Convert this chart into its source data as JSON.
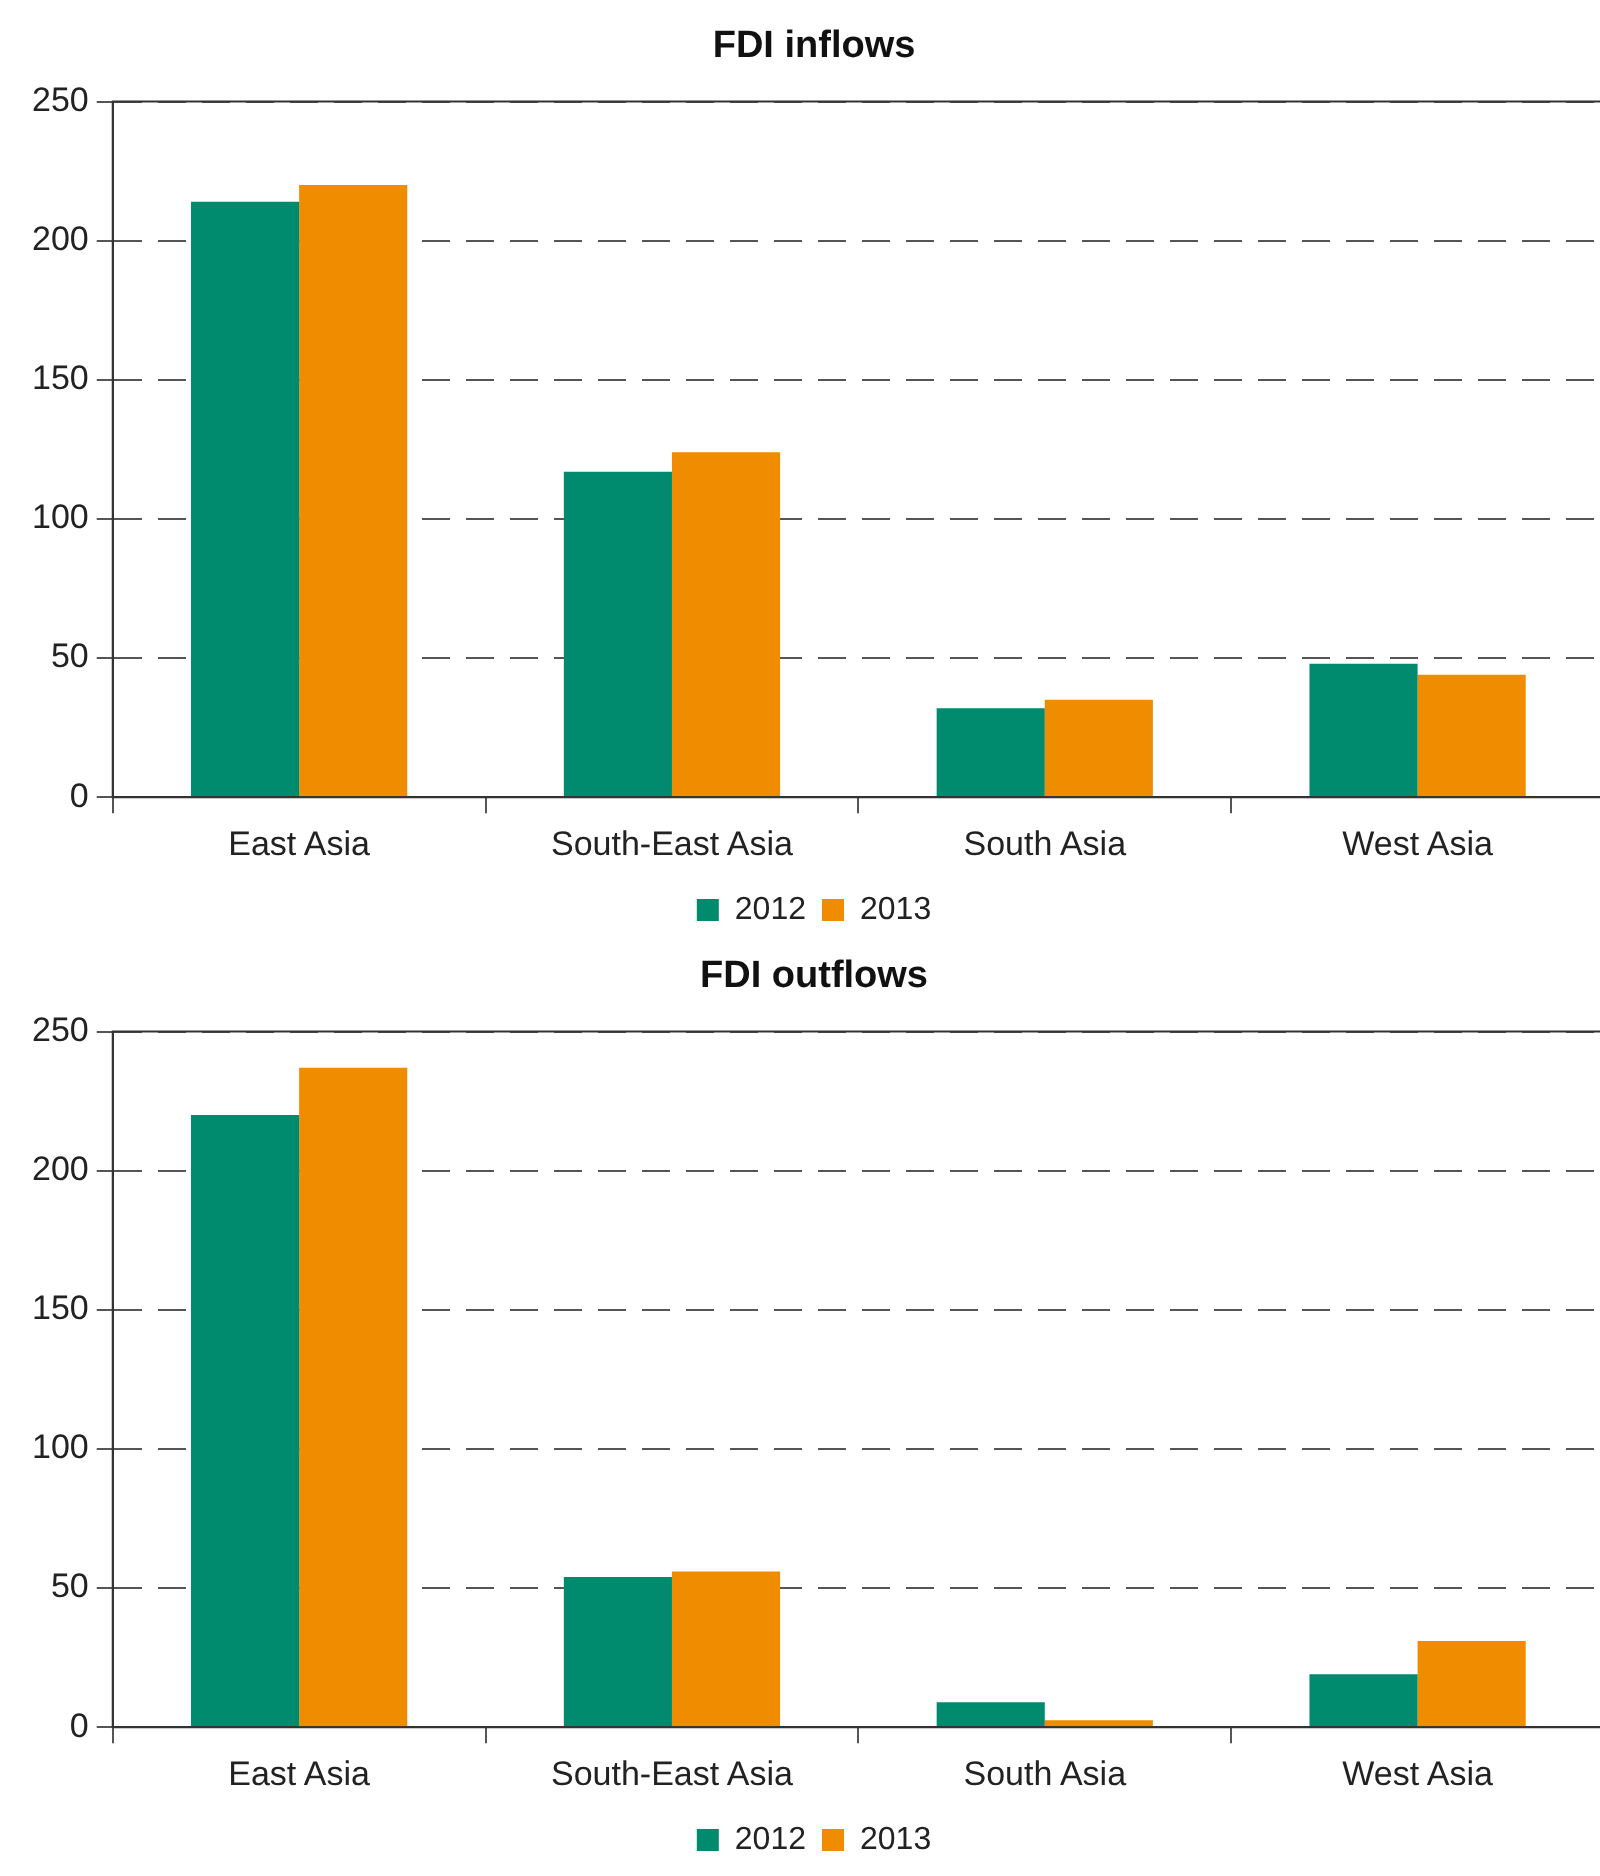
{
  "chart_data": [
    {
      "type": "bar",
      "title": "FDI inflows",
      "categories": [
        "East Asia",
        "South-East Asia",
        "South Asia",
        "West Asia"
      ],
      "series": [
        {
          "name": "2012",
          "color": "#008a6e",
          "values": [
            214,
            117,
            32,
            48
          ]
        },
        {
          "name": "2013",
          "color": "#f08c00",
          "values": [
            220,
            124,
            35,
            44
          ]
        }
      ],
      "ylim": [
        0,
        250
      ],
      "yticks": [
        0,
        50,
        100,
        150,
        200,
        250
      ],
      "grid": "y",
      "legend": "bottom"
    },
    {
      "type": "bar",
      "title": "FDI outflows",
      "categories": [
        "East Asia",
        "South-East Asia",
        "South Asia",
        "West Asia"
      ],
      "series": [
        {
          "name": "2012",
          "color": "#008a6e",
          "values": [
            220,
            54,
            9,
            19
          ]
        },
        {
          "name": "2013",
          "color": "#f08c00",
          "values": [
            237,
            56,
            2.5,
            31
          ]
        }
      ],
      "ylim": [
        0,
        250
      ],
      "yticks": [
        0,
        50,
        100,
        150,
        200,
        250
      ],
      "grid": "y",
      "legend": "bottom"
    }
  ]
}
